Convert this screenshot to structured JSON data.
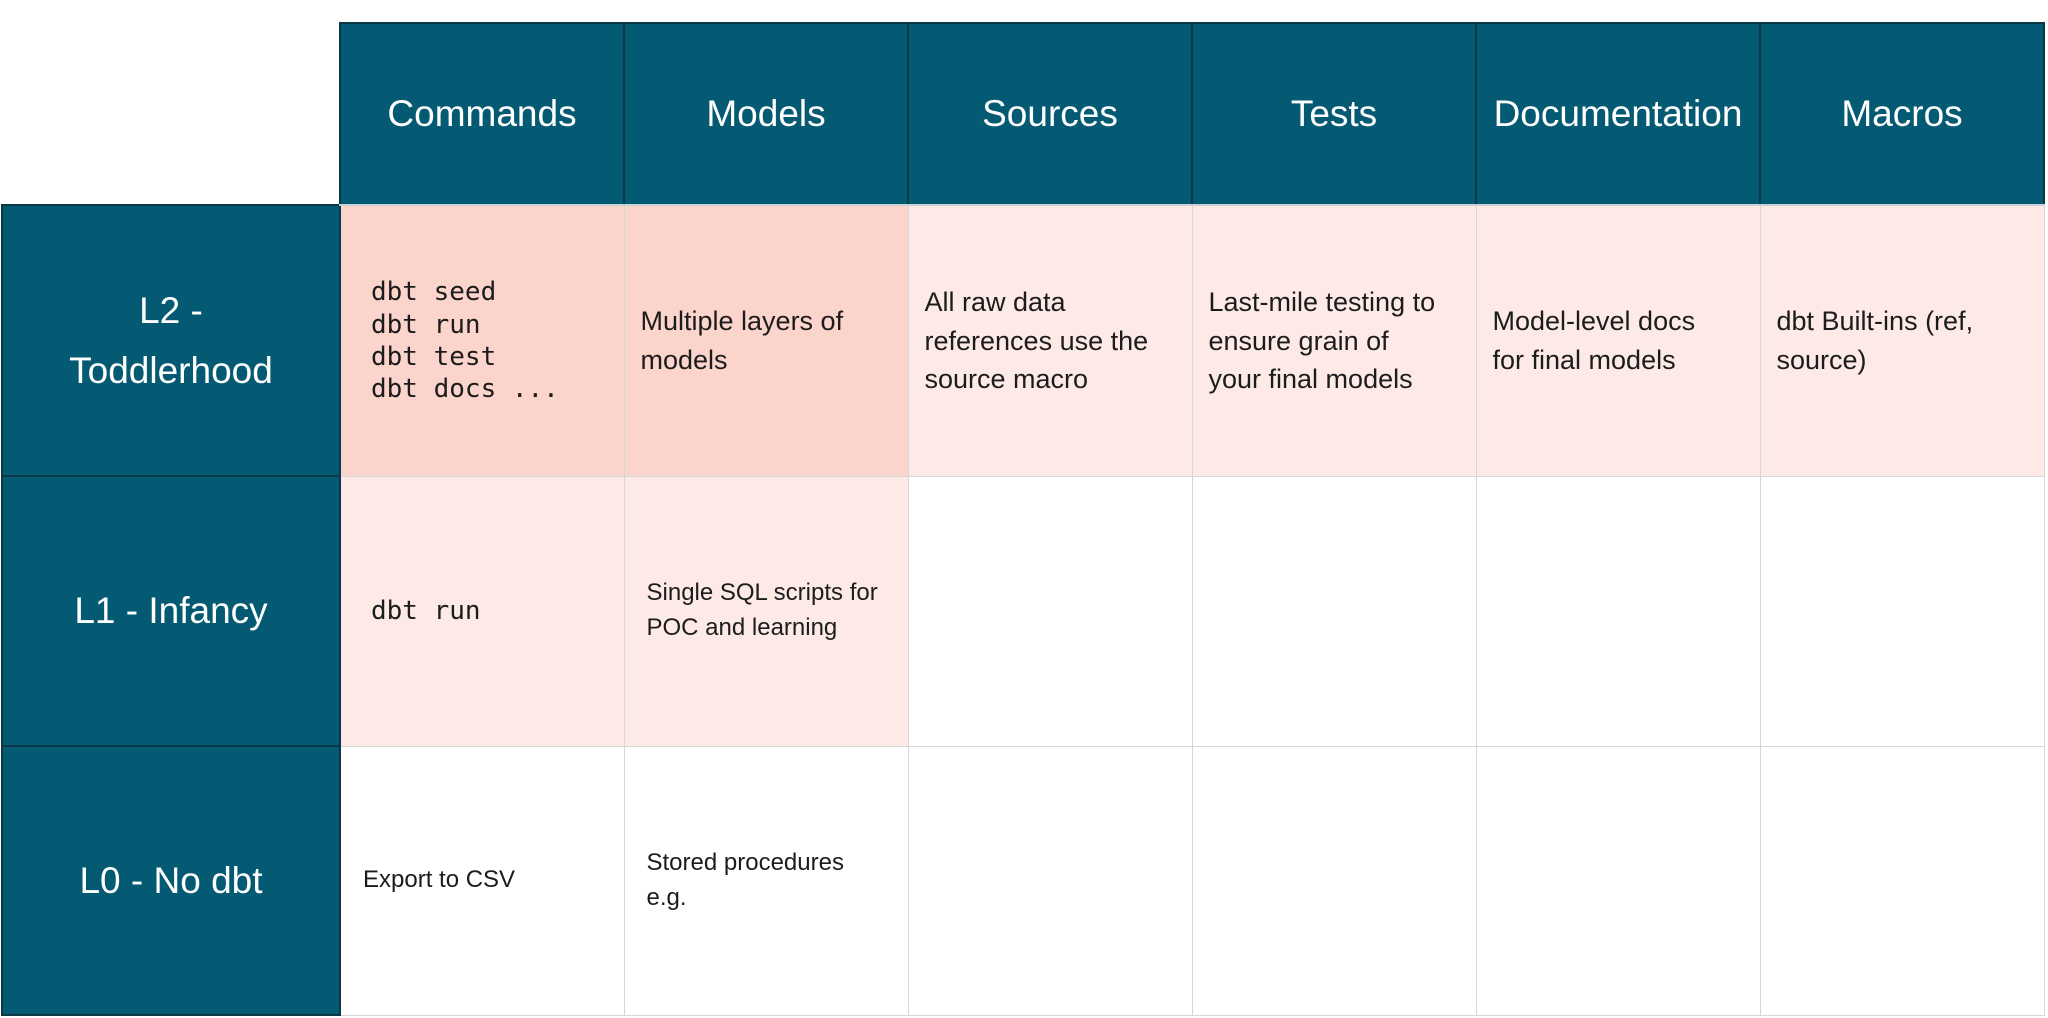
{
  "table": {
    "columns": [
      "Commands",
      "Models",
      "Sources",
      "Tests",
      "Documentation",
      "Macros"
    ],
    "rows": [
      {
        "label": "L2 -\nToddlerhood",
        "cells": {
          "commands": "dbt seed\ndbt run\ndbt test\ndbt docs ...",
          "models": "Multiple layers of\nmodels",
          "sources": "All raw data\nreferences use the\nsource macro",
          "tests": "Last-mile testing to\nensure grain of\nyour final models",
          "documentation": "Model-level docs\nfor final models",
          "macros": "dbt Built-ins (ref,\nsource)"
        }
      },
      {
        "label": "L1 - Infancy",
        "cells": {
          "commands": "dbt run",
          "models": "Single SQL scripts for\nPOC and learning",
          "sources": "",
          "tests": "",
          "documentation": "",
          "macros": ""
        }
      },
      {
        "label": "L0 - No dbt",
        "cells": {
          "commands": "Export to CSV",
          "models": "Stored procedures\ne.g.",
          "sources": "",
          "tests": "",
          "documentation": "",
          "macros": ""
        }
      }
    ]
  },
  "colors": {
    "header_teal": "#055a73",
    "dark_border": "#0c3745",
    "l2_pink": "#fbd4cc",
    "soft_pink": "#fdeae7",
    "border_gray": "#d6d6d6",
    "header_underline": "#c6d0d5",
    "text_dark": "#1c1c1c",
    "text_light": "#ffffff"
  }
}
